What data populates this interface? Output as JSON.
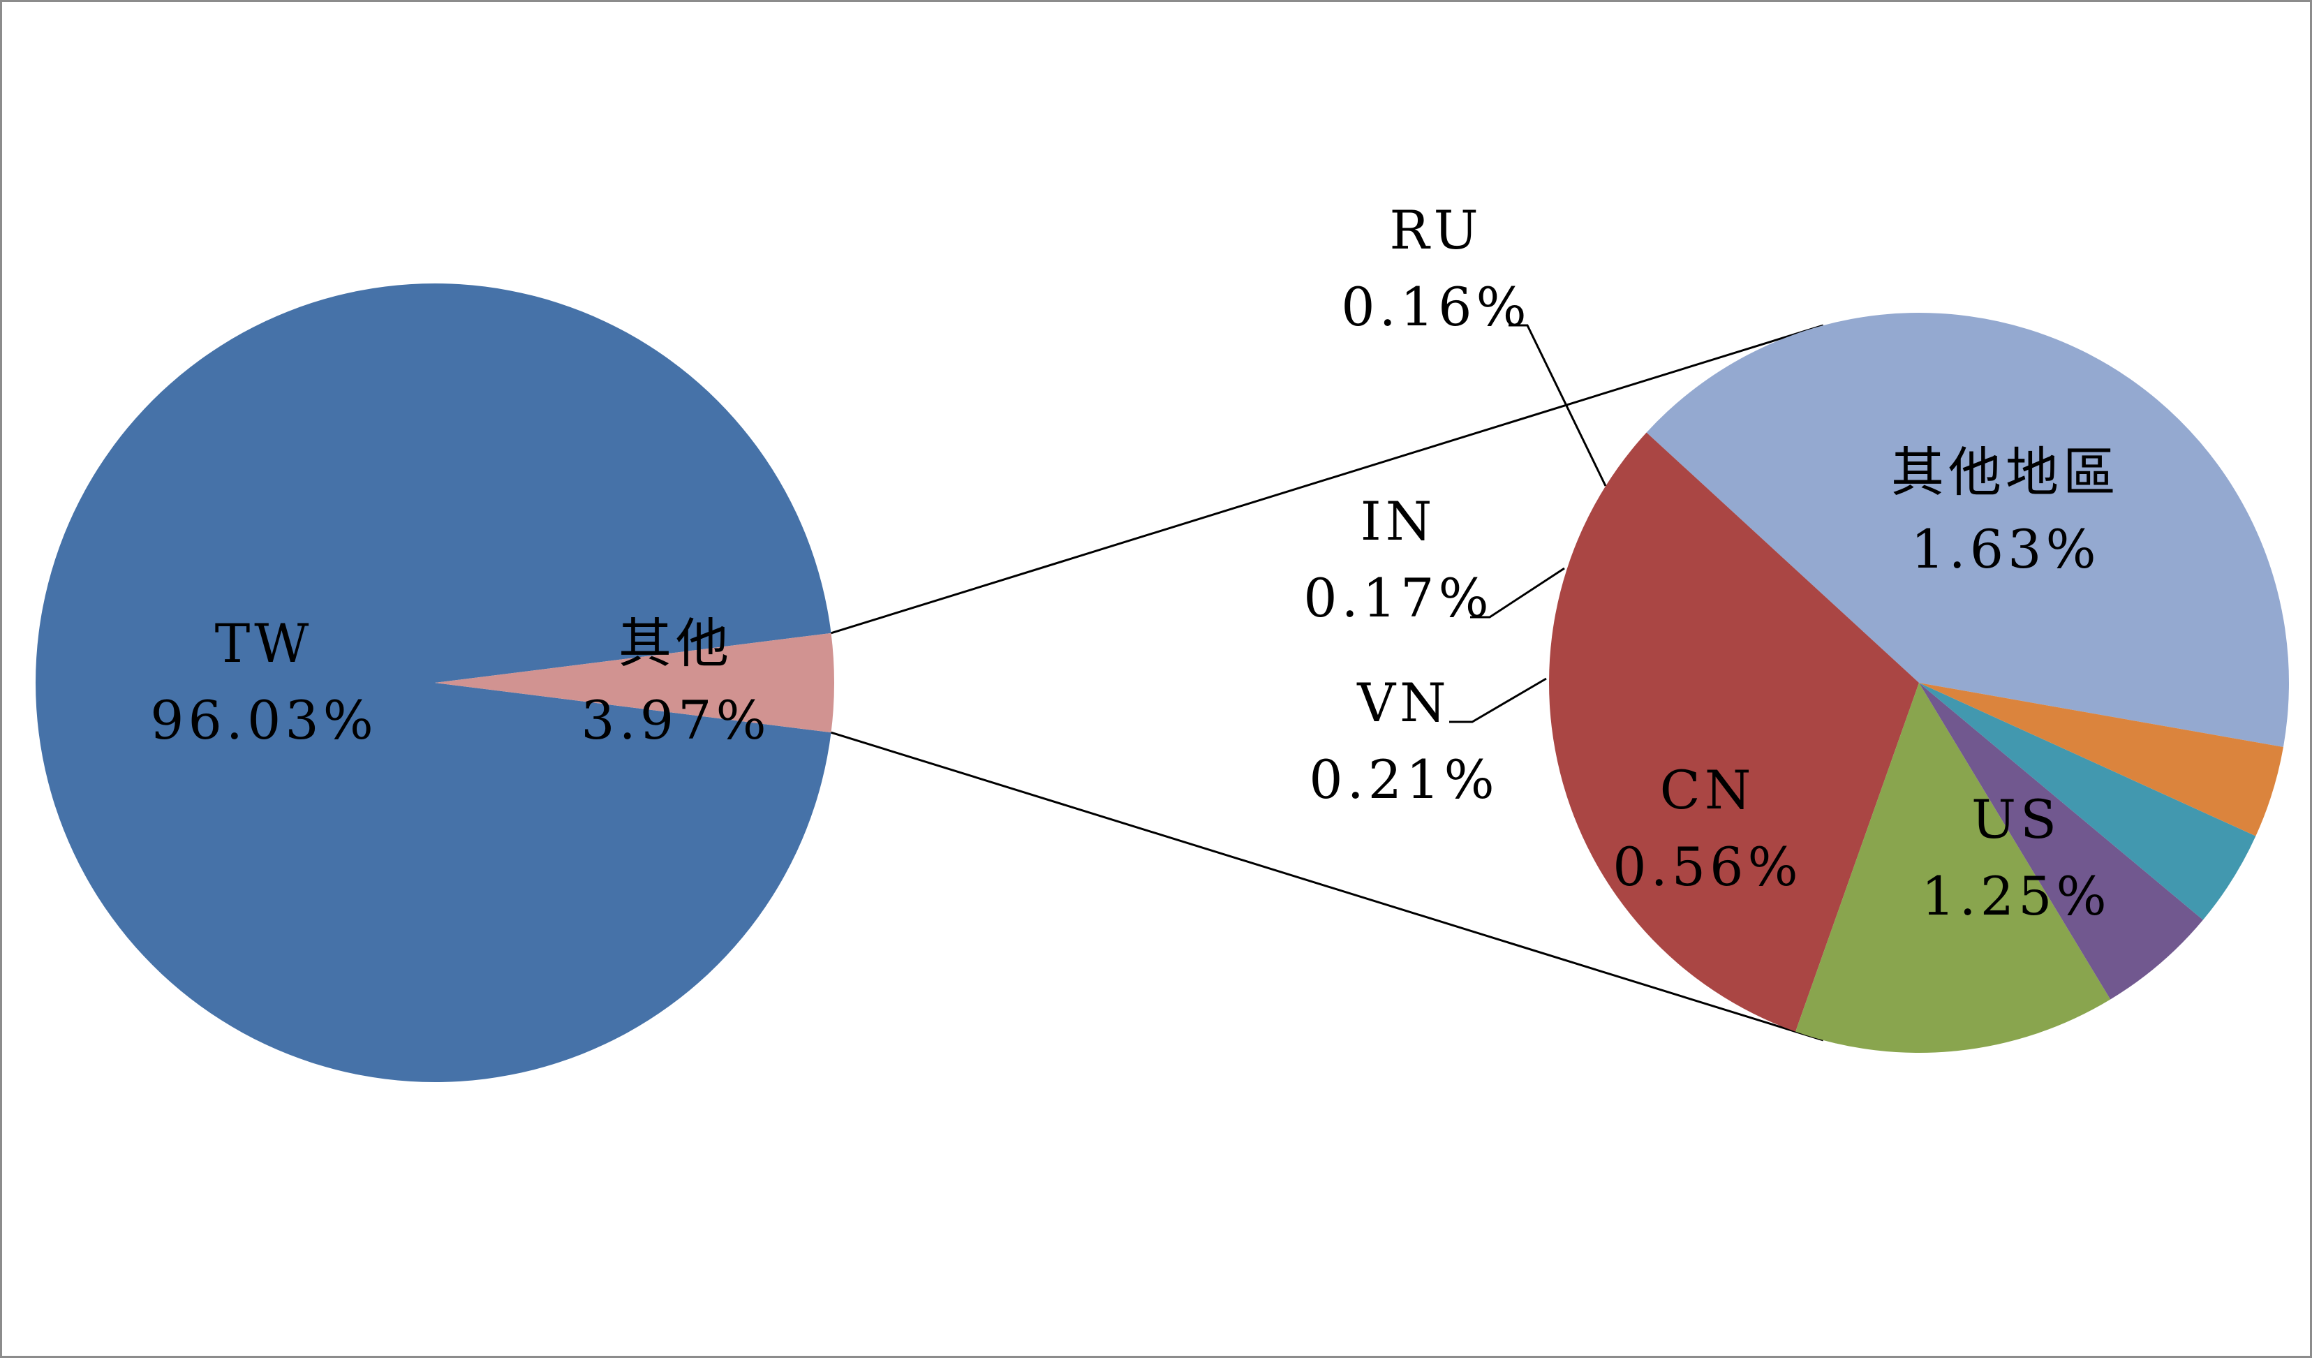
{
  "chart_data": [
    {
      "type": "pie",
      "role": "main",
      "slices": [
        {
          "label": "TW",
          "value": 96.03,
          "value_text": "96.03%",
          "color": "#4672A8"
        },
        {
          "label": "其他",
          "value": 3.97,
          "value_text": "3.97%",
          "color": "#D19391"
        }
      ]
    },
    {
      "type": "pie",
      "role": "breakdown-of-其他",
      "slices": [
        {
          "label": "其他地區",
          "value": 1.63,
          "value_text": "1.63%",
          "color": "#94A9D0"
        },
        {
          "label": "US",
          "value": 1.25,
          "value_text": "1.25%",
          "color": "#AA4644"
        },
        {
          "label": "CN",
          "value": 0.56,
          "value_text": "0.56%",
          "color": "#89A54E"
        },
        {
          "label": "VN",
          "value": 0.21,
          "value_text": "0.21%",
          "color": "#71588F"
        },
        {
          "label": "IN",
          "value": 0.17,
          "value_text": "0.17%",
          "color": "#4298AF"
        },
        {
          "label": "RU",
          "value": 0.16,
          "value_text": "0.16%",
          "color": "#DB843D"
        }
      ]
    }
  ]
}
